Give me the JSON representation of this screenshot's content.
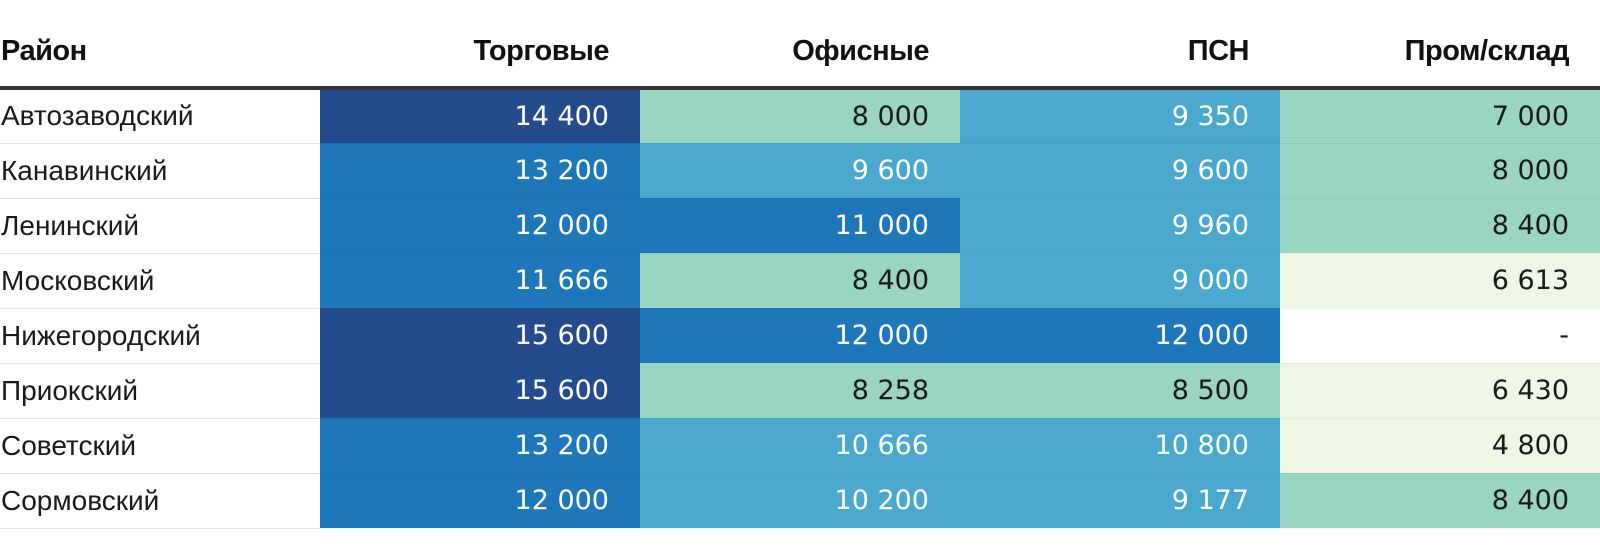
{
  "chart_data": {
    "type": "table",
    "columns": [
      "Район",
      "Торговые",
      "Офисные",
      "ПСН",
      "Пром/склад"
    ],
    "rows": [
      {
        "name": "Автозаводский",
        "values": [
          14400,
          8000,
          9350,
          7000
        ],
        "labels": [
          "14 400",
          "8 000",
          "9 350",
          "7 000"
        ]
      },
      {
        "name": "Канавинский",
        "values": [
          13200,
          9600,
          9600,
          8000
        ],
        "labels": [
          "13 200",
          "9 600",
          "9 600",
          "8 000"
        ]
      },
      {
        "name": "Ленинский",
        "values": [
          12000,
          11000,
          9960,
          8400
        ],
        "labels": [
          "12 000",
          "11 000",
          "9 960",
          "8 400"
        ]
      },
      {
        "name": "Московский",
        "values": [
          11666,
          8400,
          9000,
          6613
        ],
        "labels": [
          "11 666",
          "8 400",
          "9 000",
          "6 613"
        ]
      },
      {
        "name": "Нижегородский",
        "values": [
          15600,
          12000,
          12000,
          null
        ],
        "labels": [
          "15 600",
          "12 000",
          "12 000",
          "-"
        ]
      },
      {
        "name": "Приокский",
        "values": [
          15600,
          8258,
          8500,
          6430
        ],
        "labels": [
          "15 600",
          "8 258",
          "8 500",
          "6 430"
        ]
      },
      {
        "name": "Советский",
        "values": [
          13200,
          10666,
          10800,
          4800
        ],
        "labels": [
          "13 200",
          "10 666",
          "10 800",
          "4 800"
        ]
      },
      {
        "name": "Сормовский",
        "values": [
          12000,
          10200,
          9177,
          8400
        ],
        "labels": [
          "12 000",
          "10 200",
          "9 177",
          "8 400"
        ]
      }
    ],
    "color_scale": [
      {
        "min": 0,
        "max": 7000,
        "color": "#eef7e6",
        "text": "#1a1a1a"
      },
      {
        "min": 7000,
        "max": 9000,
        "color": "#99d5c0",
        "text": "#1a1a1a"
      },
      {
        "min": 9000,
        "max": 11000,
        "color": "#4aa8cd",
        "text": "#ffffff"
      },
      {
        "min": 11000,
        "max": 14000,
        "color": "#1d77b8",
        "text": "#ffffff"
      },
      {
        "min": 14000,
        "max": 100000,
        "color": "#244b8c",
        "text": "#ffffff"
      }
    ],
    "missing_color": "#ffffff"
  }
}
